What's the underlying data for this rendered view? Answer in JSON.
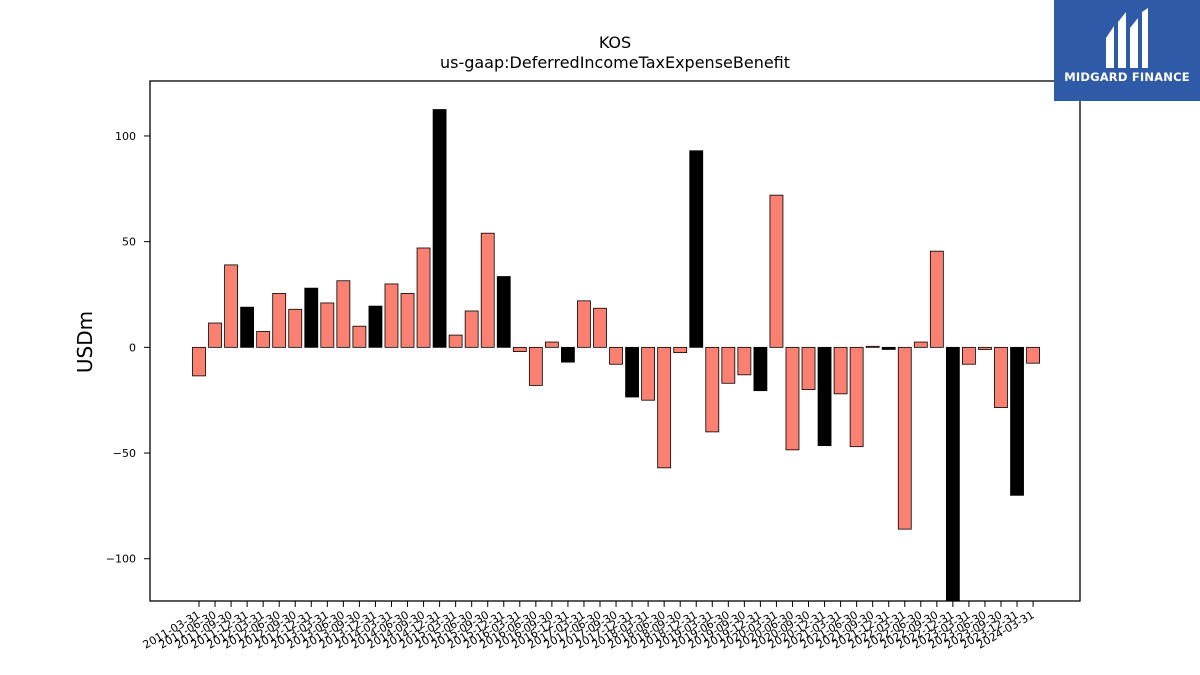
{
  "logo": {
    "name": "MIDGARD FINANCE"
  },
  "chart_data": {
    "type": "bar",
    "title": "KOS",
    "subtitle": "us-gaap:DeferredIncomeTaxExpenseBenefit",
    "ylabel": "USDm",
    "xlabel": "",
    "ylim": [
      -120,
      126
    ],
    "yticks": [
      -100,
      -50,
      0,
      50,
      100
    ],
    "grid": false,
    "colors": {
      "quarter": "#fa8072",
      "annual": "#000000"
    },
    "categories": [
      "2011-03-31",
      "2011-06-30",
      "2011-09-30",
      "2011-12-31",
      "2012-03-31",
      "2012-06-30",
      "2012-09-30",
      "2012-12-31",
      "2013-03-31",
      "2013-06-30",
      "2013-09-30",
      "2013-12-31",
      "2014-03-31",
      "2014-06-30",
      "2014-09-30",
      "2014-12-31",
      "2015-03-31",
      "2015-06-30",
      "2015-09-30",
      "2015-12-31",
      "2016-03-31",
      "2016-06-30",
      "2016-09-30",
      "2016-12-31",
      "2017-03-31",
      "2017-06-30",
      "2017-09-30",
      "2017-12-31",
      "2018-03-31",
      "2018-06-30",
      "2018-09-30",
      "2018-12-31",
      "2019-03-31",
      "2019-06-30",
      "2019-09-30",
      "2019-12-31",
      "2020-03-31",
      "2020-06-30",
      "2020-09-30",
      "2020-12-31",
      "2021-03-31",
      "2021-06-30",
      "2021-09-30",
      "2021-12-31",
      "2022-03-31",
      "2022-06-30",
      "2022-09-30",
      "2022-12-31",
      "2023-03-31",
      "2023-06-30",
      "2023-09-30",
      "2023-12-31",
      "2024-03-31"
    ],
    "values": [
      -13.5,
      11.5,
      39,
      19,
      7.5,
      25.5,
      18,
      28,
      21,
      31.5,
      10,
      19.5,
      30,
      25.5,
      47,
      112.5,
      5.8,
      17.2,
      54,
      33.5,
      -2,
      -18,
      2.5,
      -7,
      22,
      18.5,
      -8,
      -23.5,
      -25,
      -57,
      -2.5,
      93,
      -40,
      -17,
      -13,
      -20.5,
      72,
      -48.5,
      -20,
      -46.5,
      -22,
      -47,
      0.5,
      -1,
      -86,
      2.5,
      45.5,
      -122,
      -8,
      -1,
      -28.5,
      -70,
      -7.5
    ],
    "annual": [
      false,
      false,
      false,
      true,
      false,
      false,
      false,
      true,
      false,
      false,
      false,
      true,
      false,
      false,
      false,
      true,
      false,
      false,
      false,
      true,
      false,
      false,
      false,
      true,
      false,
      false,
      false,
      true,
      false,
      false,
      false,
      true,
      false,
      false,
      false,
      true,
      false,
      false,
      false,
      true,
      false,
      false,
      false,
      true,
      false,
      false,
      false,
      true,
      false,
      false,
      false,
      true,
      false
    ]
  }
}
